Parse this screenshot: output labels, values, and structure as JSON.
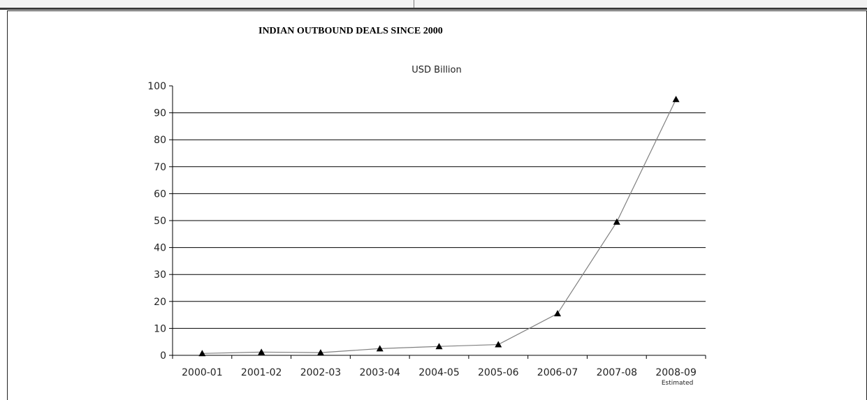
{
  "chart_data": {
    "type": "line",
    "title": "INDIAN OUTBOUND DEALS SINCE 2000",
    "subtitle": "USD Billion",
    "xlabel": "",
    "ylabel": "",
    "categories": [
      "2000-01",
      "2001-02",
      "2002-03",
      "2003-04",
      "2004-05",
      "2005-06",
      "2006-07",
      "2007-08",
      "2008-09"
    ],
    "category_notes": [
      "",
      "",
      "",
      "",
      "",
      "",
      "",
      "",
      "Estimated"
    ],
    "series": [
      {
        "values": [
          0.7,
          1.2,
          1.0,
          2.5,
          3.3,
          4.0,
          15.5,
          49.5,
          95.0
        ]
      }
    ],
    "ylim": [
      0,
      100
    ],
    "yticks": [
      0,
      10,
      20,
      30,
      40,
      50,
      60,
      70,
      80,
      90,
      100
    ],
    "grid": true,
    "marker": "triangle",
    "line_color": "#808080",
    "marker_color": "#000000",
    "grid_color": "#000000"
  }
}
